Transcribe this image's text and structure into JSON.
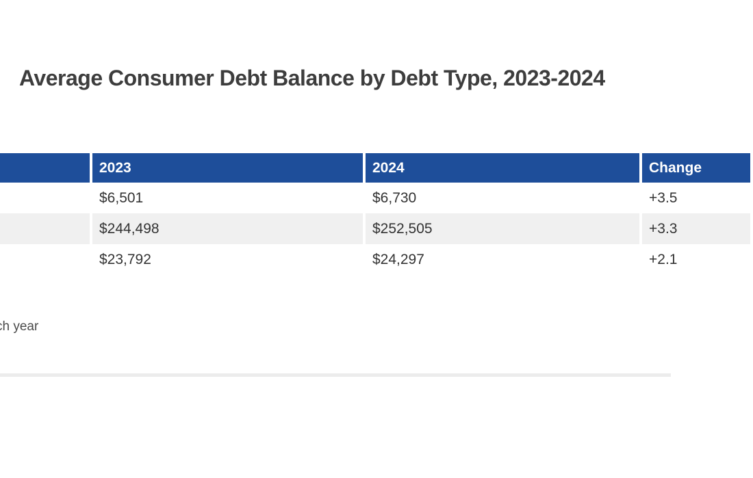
{
  "page": {
    "background": "#ffffff"
  },
  "chart_data": {
    "type": "table",
    "title": "Average Consumer Debt Balance by Debt Type, 2023-2024",
    "columns": [
      "",
      "2023",
      "2024",
      "Change"
    ],
    "rows": [
      [
        "",
        "$6,501",
        "$6,730",
        "+3.5"
      ],
      [
        "",
        "$244,498",
        "$252,505",
        "+3.3"
      ],
      [
        "",
        "$23,792",
        "$24,297",
        "+2.1"
      ]
    ],
    "layout": {
      "zebra_striping": true,
      "left_label_column_clipped_at_left_edge": true,
      "change_column_clipped_at_right_edge": true
    }
  },
  "footer": {
    "source_fragment": "ch year"
  },
  "colors": {
    "header_bg": "#1e4e9a",
    "header_text": "#ffffff",
    "row_alt_bg": "#f0f0f0",
    "body_text": "#333333",
    "title_text": "#3d3d3d",
    "footer_text": "#4a4a4a",
    "divider": "#ececec"
  }
}
